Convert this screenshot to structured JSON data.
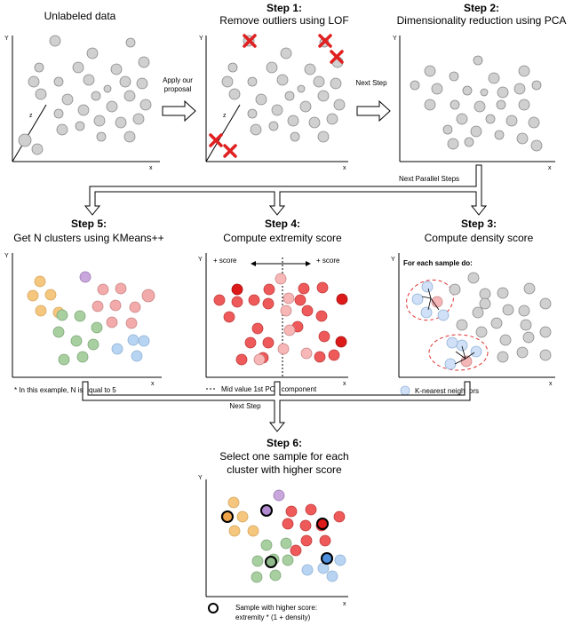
{
  "panels": {
    "unlabeled": {
      "title": "Unlabeled data",
      "y_axis": "Y",
      "x_axis": "x",
      "z_axis": "z"
    },
    "step1": {
      "step": "Step 1:",
      "title": "Remove outliers using LOF",
      "y_axis": "Y",
      "x_axis": "x",
      "z_axis": "z"
    },
    "step2": {
      "step": "Step 2:",
      "title": "Dimensionality reduction using PCA",
      "y_axis": "Y",
      "x_axis": "x"
    },
    "step5": {
      "step": "Step 5:",
      "title": "Get N clusters using KMeans++",
      "y_axis": "Y",
      "x_axis": "x",
      "footnote": "* In this example, N is equal to 5"
    },
    "step4": {
      "step": "Step 4:",
      "title": "Compute extremity score",
      "y_axis": "Y",
      "x_axis": "x",
      "left_score": "+ score",
      "right_score": "+ score",
      "legend": "Mid value 1st PCA component"
    },
    "step3": {
      "step": "Step 3:",
      "title": "Compute density score",
      "y_axis": "Y",
      "x_axis": "x",
      "inner_label": "For each sample do:",
      "legend": "K-nearest neighbors"
    },
    "step6": {
      "step": "Step 6:",
      "title_line1": "Select one sample for each",
      "title_line2": "cluster with higher score",
      "y_axis": "Y",
      "x_axis": "x",
      "legend_line1": "Sample with higher score:",
      "legend_line2": "extremity * (1 + density)"
    }
  },
  "arrows": {
    "apply_line1": "Apply our",
    "apply_line2": "proposal",
    "next_step": "Next Step",
    "next_parallel": "Next Parallel Steps",
    "next_step_bottom": "Next Step"
  },
  "colors": {
    "point_gray": "#d0d0d0",
    "outlier_red": "#e02020",
    "cluster_orange": "#f5c77e",
    "cluster_purple": "#c9a6dc",
    "cluster_pink": "#f2aaaa",
    "cluster_green": "#a8cfa0",
    "cluster_blue": "#b7d4f2",
    "extremity_dark": "#dd1a1a",
    "extremity_mid": "#ee5a5a",
    "extremity_light": "#f7b7b7",
    "knn_blue": "#cfe0f7",
    "knn_pink": "#f4b6b6"
  }
}
